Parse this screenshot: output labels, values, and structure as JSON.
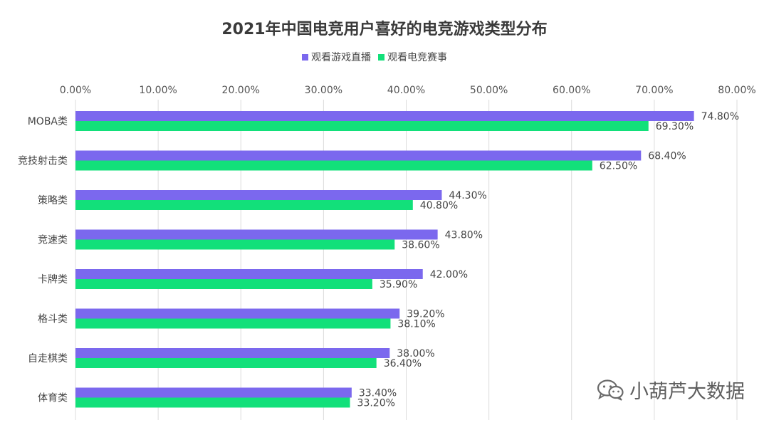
{
  "chart_data": {
    "type": "bar",
    "orientation": "horizontal",
    "title": "2021年中国电竞用户喜好的电竞游戏类型分布",
    "categories": [
      "MOBA类",
      "竞技射击类",
      "策略类",
      "竞速类",
      "卡牌类",
      "格斗类",
      "自走棋类",
      "体育类"
    ],
    "series": [
      {
        "name": "观看游戏直播",
        "color": "#7b68ee",
        "values": [
          74.8,
          68.4,
          44.3,
          43.8,
          42.0,
          39.2,
          38.0,
          33.4
        ]
      },
      {
        "name": "观看电竞赛事",
        "color": "#12e07a",
        "values": [
          69.3,
          62.5,
          40.8,
          38.6,
          35.9,
          38.1,
          36.4,
          33.2
        ]
      }
    ],
    "data_labels": [
      [
        "74.80%",
        "68.40%",
        "44.30%",
        "43.80%",
        "42.00%",
        "39.20%",
        "38.00%",
        "33.40%"
      ],
      [
        "69.30%",
        "62.50%",
        "40.80%",
        "38.60%",
        "35.90%",
        "38.10%",
        "36.40%",
        "33.20%"
      ]
    ],
    "xlim": [
      0,
      80
    ],
    "ticks": [
      0,
      10,
      20,
      30,
      40,
      50,
      60,
      70,
      80
    ],
    "tick_labels": [
      "0.00%",
      "10.00%",
      "20.00%",
      "30.00%",
      "40.00%",
      "50.00%",
      "60.00%",
      "70.00%",
      "80.00%"
    ],
    "grid": true,
    "axis_position": "top",
    "legend_position": "top-center"
  },
  "watermark": {
    "text": "小葫芦大数据",
    "icon": "wechat-icon"
  }
}
